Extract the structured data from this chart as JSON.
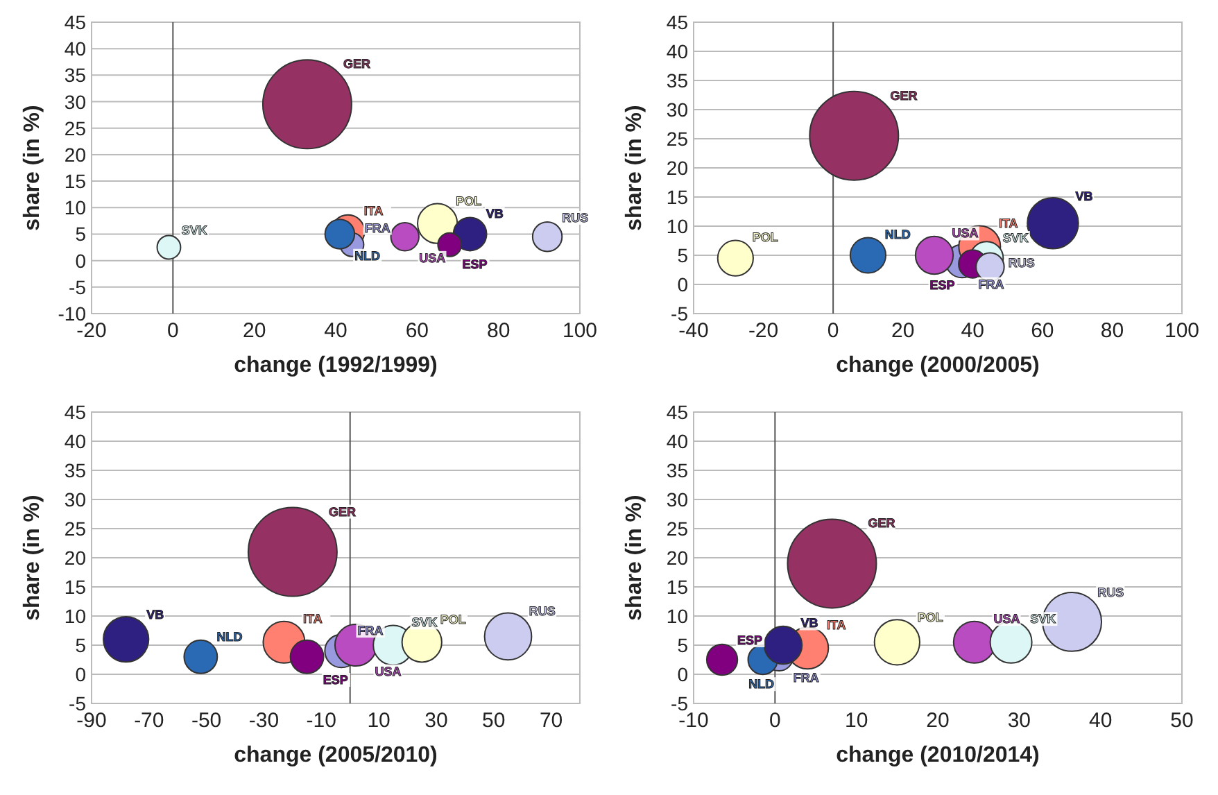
{
  "chart_data": [
    {
      "type": "bubble",
      "xlabel": "change (1992/1999)",
      "ylabel": "share (in %)",
      "xlim": [
        -20,
        100
      ],
      "xticks": [
        -20,
        0,
        20,
        40,
        60,
        80,
        100
      ],
      "ylim": [
        -10,
        45
      ],
      "yticks": [
        -10,
        -5,
        0,
        5,
        10,
        15,
        20,
        25,
        30,
        35,
        40,
        45
      ],
      "grid": "y",
      "legend": false,
      "ref_lines": [
        {
          "axis": "x",
          "value": 0
        }
      ],
      "series": [
        {
          "name": "GER",
          "color": "#953163",
          "x": [
            33
          ],
          "values": [
            29.5
          ],
          "sizes": [
            1
          ]
        },
        {
          "name": "SVK",
          "color": "#ddf6f6",
          "x": [
            -1
          ],
          "values": [
            2.5
          ],
          "sizes": [
            0.07
          ]
        },
        {
          "name": "ITA",
          "color": "#ff8070",
          "x": [
            43
          ],
          "values": [
            5.5
          ],
          "sizes": [
            0.14
          ]
        },
        {
          "name": "FRA",
          "color": "#9999e0",
          "x": [
            44
          ],
          "values": [
            3
          ],
          "sizes": [
            0.07
          ]
        },
        {
          "name": "NLD",
          "color": "#2a6ab5",
          "x": [
            41
          ],
          "values": [
            5
          ],
          "sizes": [
            0.11
          ]
        },
        {
          "name": "USA",
          "color": "#b84cc0",
          "x": [
            57
          ],
          "values": [
            4.5
          ],
          "sizes": [
            0.1
          ]
        },
        {
          "name": "POL",
          "color": "#ffffcc",
          "x": [
            65
          ],
          "values": [
            7
          ],
          "sizes": [
            0.2
          ]
        },
        {
          "name": "VB",
          "color": "#2e2080",
          "x": [
            73
          ],
          "values": [
            5
          ],
          "sizes": [
            0.14
          ]
        },
        {
          "name": "ESP",
          "color": "#800080",
          "x": [
            68
          ],
          "values": [
            3
          ],
          "sizes": [
            0.07
          ]
        },
        {
          "name": "RUS",
          "color": "#ccccf0",
          "x": [
            92
          ],
          "values": [
            4.5
          ],
          "sizes": [
            0.11
          ]
        }
      ]
    },
    {
      "type": "bubble",
      "xlabel": "change (2000/2005)",
      "ylabel": "share (in %)",
      "xlim": [
        -40,
        100
      ],
      "xticks": [
        -40,
        -20,
        0,
        20,
        40,
        60,
        80,
        100
      ],
      "ylim": [
        -5,
        45
      ],
      "yticks": [
        -5,
        0,
        5,
        10,
        15,
        20,
        25,
        30,
        35,
        40,
        45
      ],
      "grid": "y",
      "legend": false,
      "ref_lines": [
        {
          "axis": "x",
          "value": 0
        }
      ],
      "series": [
        {
          "name": "GER",
          "color": "#953163",
          "x": [
            6
          ],
          "values": [
            25.5
          ],
          "sizes": [
            1
          ]
        },
        {
          "name": "POL",
          "color": "#ffffcc",
          "x": [
            -28
          ],
          "values": [
            4.5
          ],
          "sizes": [
            0.16
          ]
        },
        {
          "name": "NLD",
          "color": "#2a6ab5",
          "x": [
            10
          ],
          "values": [
            5
          ],
          "sizes": [
            0.16
          ]
        },
        {
          "name": "FRA",
          "color": "#9999e0",
          "x": [
            37
          ],
          "values": [
            4
          ],
          "sizes": [
            0.14
          ]
        },
        {
          "name": "USA",
          "color": "#b84cc0",
          "x": [
            29
          ],
          "values": [
            5
          ],
          "sizes": [
            0.18
          ]
        },
        {
          "name": "ITA",
          "color": "#ff8070",
          "x": [
            42
          ],
          "values": [
            6.5
          ],
          "sizes": [
            0.22
          ]
        },
        {
          "name": "SVK",
          "color": "#ddf6f6",
          "x": [
            44
          ],
          "values": [
            4.5
          ],
          "sizes": [
            0.14
          ]
        },
        {
          "name": "ESP",
          "color": "#800080",
          "x": [
            40
          ],
          "values": [
            3.5
          ],
          "sizes": [
            0.1
          ]
        },
        {
          "name": "RUS",
          "color": "#ccccf0",
          "x": [
            45
          ],
          "values": [
            3
          ],
          "sizes": [
            0.1
          ]
        },
        {
          "name": "VB",
          "color": "#2e2080",
          "x": [
            63
          ],
          "values": [
            10.5
          ],
          "sizes": [
            0.33
          ]
        }
      ]
    },
    {
      "type": "bubble",
      "xlabel": "change (2005/2010)",
      "ylabel": "share (in %)",
      "xlim": [
        -90,
        80
      ],
      "xticks": [
        -90,
        -70,
        -50,
        -30,
        -10,
        10,
        30,
        50,
        70
      ],
      "ylim": [
        -5,
        45
      ],
      "yticks": [
        -5,
        0,
        5,
        10,
        15,
        20,
        25,
        30,
        35,
        40,
        45
      ],
      "grid": "y",
      "legend": false,
      "ref_lines": [
        {
          "axis": "x",
          "value": 0
        }
      ],
      "series": [
        {
          "name": "GER",
          "color": "#953163",
          "x": [
            -20
          ],
          "values": [
            21
          ],
          "sizes": [
            1
          ]
        },
        {
          "name": "VB",
          "color": "#2e2080",
          "x": [
            -78
          ],
          "values": [
            6
          ],
          "sizes": [
            0.26
          ]
        },
        {
          "name": "NLD",
          "color": "#2a6ab5",
          "x": [
            -52
          ],
          "values": [
            3
          ],
          "sizes": [
            0.14
          ]
        },
        {
          "name": "ITA",
          "color": "#ff8070",
          "x": [
            -23
          ],
          "values": [
            5.5
          ],
          "sizes": [
            0.22
          ]
        },
        {
          "name": "FRA",
          "color": "#9999e0",
          "x": [
            -3
          ],
          "values": [
            4
          ],
          "sizes": [
            0.14
          ]
        },
        {
          "name": "ESP",
          "color": "#800080",
          "x": [
            -15
          ],
          "values": [
            3
          ],
          "sizes": [
            0.14
          ]
        },
        {
          "name": "USA",
          "color": "#b84cc0",
          "x": [
            2
          ],
          "values": [
            5
          ],
          "sizes": [
            0.22
          ]
        },
        {
          "name": "SVK",
          "color": "#ddf6f6",
          "x": [
            15
          ],
          "values": [
            5
          ],
          "sizes": [
            0.2
          ]
        },
        {
          "name": "POL",
          "color": "#ffffcc",
          "x": [
            25
          ],
          "values": [
            5.5
          ],
          "sizes": [
            0.2
          ]
        },
        {
          "name": "RUS",
          "color": "#ccccf0",
          "x": [
            55
          ],
          "values": [
            6.5
          ],
          "sizes": [
            0.28
          ]
        }
      ]
    },
    {
      "type": "bubble",
      "xlabel": "change (2010/2014)",
      "ylabel": "share (in %)",
      "xlim": [
        -10,
        50
      ],
      "xticks": [
        -10,
        0,
        10,
        20,
        30,
        40,
        50
      ],
      "ylim": [
        -5,
        45
      ],
      "yticks": [
        -5,
        0,
        5,
        10,
        15,
        20,
        25,
        30,
        35,
        40,
        45
      ],
      "grid": "y",
      "legend": false,
      "ref_lines": [
        {
          "axis": "x",
          "value": 0
        }
      ],
      "series": [
        {
          "name": "GER",
          "color": "#953163",
          "x": [
            7
          ],
          "values": [
            19
          ],
          "sizes": [
            1
          ]
        },
        {
          "name": "ESP",
          "color": "#800080",
          "x": [
            -6.5
          ],
          "values": [
            2.5
          ],
          "sizes": [
            0.12
          ]
        },
        {
          "name": "FRA",
          "color": "#9999e0",
          "x": [
            0.5
          ],
          "values": [
            3
          ],
          "sizes": [
            0.1
          ]
        },
        {
          "name": "NLD",
          "color": "#2a6ab5",
          "x": [
            -1.5
          ],
          "values": [
            2.5
          ],
          "sizes": [
            0.11
          ]
        },
        {
          "name": "ITA",
          "color": "#ff8070",
          "x": [
            4
          ],
          "values": [
            4.5
          ],
          "sizes": [
            0.22
          ]
        },
        {
          "name": "VB",
          "color": "#2e2080",
          "x": [
            1
          ],
          "values": [
            5
          ],
          "sizes": [
            0.18
          ]
        },
        {
          "name": "POL",
          "color": "#ffffcc",
          "x": [
            15
          ],
          "values": [
            5.5
          ],
          "sizes": [
            0.26
          ]
        },
        {
          "name": "USA",
          "color": "#b84cc0",
          "x": [
            24.5
          ],
          "values": [
            5.5
          ],
          "sizes": [
            0.22
          ]
        },
        {
          "name": "SVK",
          "color": "#ddf6f6",
          "x": [
            29
          ],
          "values": [
            5.5
          ],
          "sizes": [
            0.22
          ]
        },
        {
          "name": "RUS",
          "color": "#ccccf0",
          "x": [
            36.5
          ],
          "values": [
            9
          ],
          "sizes": [
            0.44
          ]
        }
      ]
    }
  ]
}
